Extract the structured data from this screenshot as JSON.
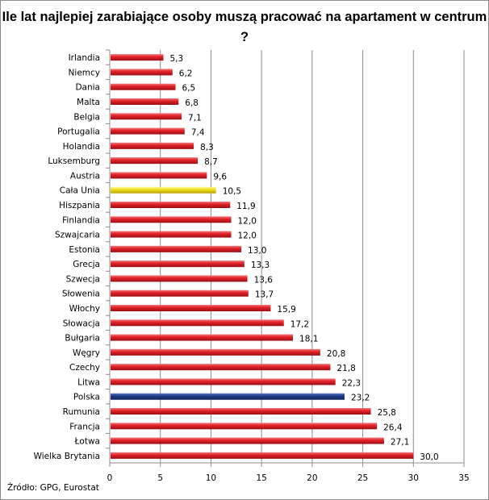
{
  "chart_data": {
    "type": "bar",
    "orientation": "horizontal",
    "title": "Ile lat najlepiej zarabiające osoby muszą pracować na apartament w centrum ?",
    "source": "Źródło: GPG, Eurostat",
    "categories": [
      "Irlandia",
      "Niemcy",
      "Dania",
      "Malta",
      "Belgia",
      "Portugalia",
      "Holandia",
      "Luksemburg",
      "Austria",
      "Cała Unia",
      "Hiszpania",
      "Finlandia",
      "Szwajcaria",
      "Estonia",
      "Grecja",
      "Szwecja",
      "Słowenia",
      "Włochy",
      "Słowacja",
      "Bułgaria",
      "Węgry",
      "Czechy",
      "Litwa",
      "Polska",
      "Rumunia",
      "Francja",
      "Łotwa",
      "Wielka Brytania"
    ],
    "values": [
      5.3,
      6.2,
      6.5,
      6.8,
      7.1,
      7.4,
      8.3,
      8.7,
      9.6,
      10.5,
      11.9,
      12.0,
      12.0,
      13.0,
      13.3,
      13.6,
      13.7,
      15.9,
      17.2,
      18.1,
      20.8,
      21.8,
      22.3,
      23.2,
      25.8,
      26.4,
      27.1,
      30.0
    ],
    "data_labels": [
      "5,3",
      "6,2",
      "6,5",
      "6,8",
      "7,1",
      "7,4",
      "8,3",
      "8,7",
      "9,6",
      "10,5",
      "11,9",
      "12,0",
      "12,0",
      "13,0",
      "13,3",
      "13,6",
      "13,7",
      "15,9",
      "17,2",
      "18,1",
      "20,8",
      "21,8",
      "22,3",
      "23,2",
      "25,8",
      "26,4",
      "27,1",
      "30,0"
    ],
    "xlim": [
      0,
      35
    ],
    "xticks": [
      "0",
      "5",
      "10",
      "15",
      "20",
      "25",
      "30",
      "35"
    ],
    "grid": "vertical",
    "legend": "none",
    "colors": {
      "default": "#e3222a",
      "Cała Unia": "#f0e020",
      "Polska": "#1f3f8a"
    }
  }
}
